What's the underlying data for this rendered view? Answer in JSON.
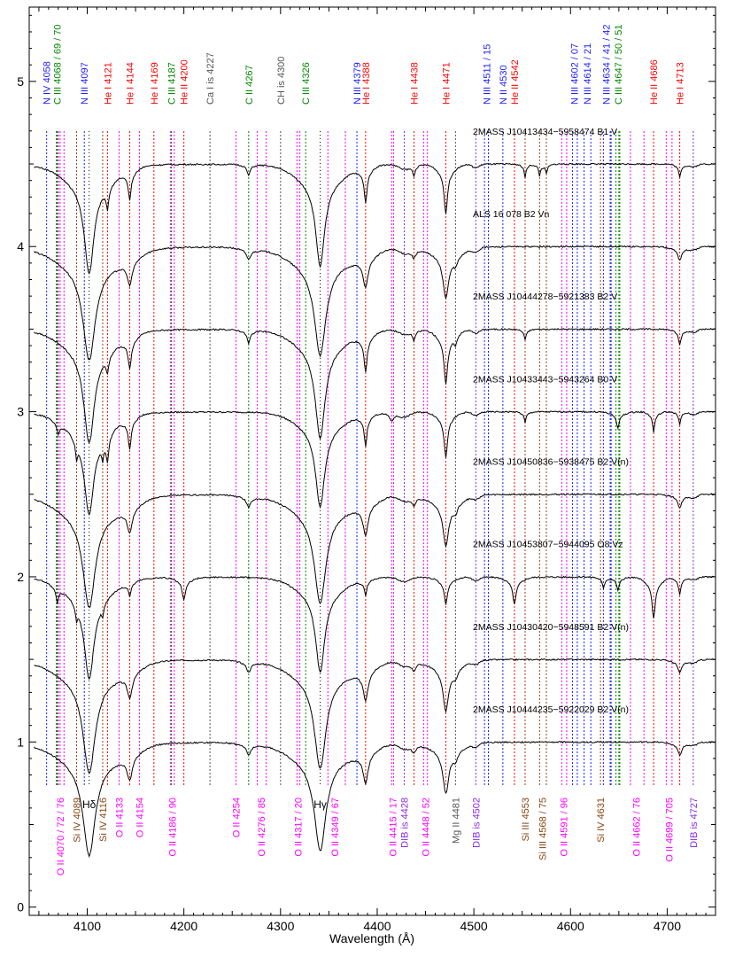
{
  "chart_data": {
    "type": "line",
    "title": "",
    "xlabel": "Wavelength (Å)",
    "ylabel": "",
    "xlim": [
      4040,
      4750
    ],
    "ylim": [
      -0.05,
      5.45
    ],
    "x_ticks": [
      4100,
      4200,
      4300,
      4400,
      4500,
      4600,
      4700
    ],
    "y_ticks": [
      0,
      1,
      2,
      3,
      4,
      5
    ],
    "grid": false,
    "colors": {
      "N": "#1d1dff",
      "C": "#008800",
      "He": "#ff0000",
      "other": "#555555",
      "O": "#ff00ff",
      "Si": "#8b4513",
      "DIB": "#8a2be2",
      "H": "#000000",
      "spectrum": "#000000"
    },
    "top_labels": [
      {
        "text": "N IV 4058",
        "x": 4058,
        "color": "N"
      },
      {
        "text": "C III 4068 / 69 / 70",
        "x": 4069,
        "color": "C"
      },
      {
        "text": "N III 4097",
        "x": 4097,
        "color": "N"
      },
      {
        "text": "He I 4121",
        "x": 4121,
        "color": "He"
      },
      {
        "text": "He I 4144",
        "x": 4144,
        "color": "He"
      },
      {
        "text": "He I 4169",
        "x": 4169,
        "color": "He"
      },
      {
        "text": "C III 4187",
        "x": 4187,
        "color": "C"
      },
      {
        "text": "He II 4200",
        "x": 4200,
        "color": "He"
      },
      {
        "text": "Ca I is 4227",
        "x": 4227,
        "color": "other"
      },
      {
        "text": "C II 4267",
        "x": 4267,
        "color": "C"
      },
      {
        "text": "CH is 4300",
        "x": 4300,
        "color": "other"
      },
      {
        "text": "C III 4326",
        "x": 4326,
        "color": "C"
      },
      {
        "text": "N III 4379",
        "x": 4379,
        "color": "N"
      },
      {
        "text": "He I 4388",
        "x": 4388,
        "color": "He"
      },
      {
        "text": "He I 4438",
        "x": 4438,
        "color": "He"
      },
      {
        "text": "He I 4471",
        "x": 4471,
        "color": "He"
      },
      {
        "text": "N III 4511 / 15",
        "x": 4513,
        "color": "N"
      },
      {
        "text": "N II 4530",
        "x": 4530,
        "color": "N"
      },
      {
        "text": "He II 4542",
        "x": 4542,
        "color": "He"
      },
      {
        "text": "N III 4602 / 07",
        "x": 4604,
        "color": "N"
      },
      {
        "text": "N III 4614 / 21",
        "x": 4617,
        "color": "N"
      },
      {
        "text": "N III 4634 / 41 / 42",
        "x": 4637,
        "color": "N"
      },
      {
        "text": "C III 4647 / 50 / 51",
        "x": 4649,
        "color": "C"
      },
      {
        "text": "He II 4686",
        "x": 4686,
        "color": "He"
      },
      {
        "text": "He I 4713",
        "x": 4713,
        "color": "He"
      }
    ],
    "bottom_labels": [
      {
        "text": "O II 4070 / 72 / 76",
        "x": 4072,
        "color": "O"
      },
      {
        "text": "Si IV 4089",
        "x": 4089,
        "color": "Si"
      },
      {
        "text": "Hδ",
        "x": 4102,
        "color": "H"
      },
      {
        "text": "Si IV 4116",
        "x": 4116,
        "color": "Si"
      },
      {
        "text": "O II 4133",
        "x": 4133,
        "color": "O"
      },
      {
        "text": "O II 4154",
        "x": 4154,
        "color": "O"
      },
      {
        "text": "O II 4186 / 90",
        "x": 4188,
        "color": "O"
      },
      {
        "text": "O II 4254",
        "x": 4254,
        "color": "O"
      },
      {
        "text": "O II 4276 / 85",
        "x": 4280,
        "color": "O"
      },
      {
        "text": "O II 4317 / 20",
        "x": 4318,
        "color": "O"
      },
      {
        "text": "Hγ",
        "x": 4341,
        "color": "H"
      },
      {
        "text": "O II 4349 / 67",
        "x": 4356,
        "color": "O"
      },
      {
        "text": "O II 4415 / 17",
        "x": 4416,
        "color": "O"
      },
      {
        "text": "DIB is 4428",
        "x": 4428,
        "color": "DIB"
      },
      {
        "text": "O II 4448 / 52",
        "x": 4450,
        "color": "O"
      },
      {
        "text": "Mg II 4481",
        "x": 4481,
        "color": "other"
      },
      {
        "text": "DIB is 4502",
        "x": 4502,
        "color": "DIB"
      },
      {
        "text": "Si III 4553",
        "x": 4553,
        "color": "Si"
      },
      {
        "text": "Si III 4568 / 75",
        "x": 4571,
        "color": "Si"
      },
      {
        "text": "O II 4591 / 96",
        "x": 4593,
        "color": "O"
      },
      {
        "text": "Si IV 4631",
        "x": 4631,
        "color": "Si"
      },
      {
        "text": "O II 4662 / 76",
        "x": 4668,
        "color": "O"
      },
      {
        "text": "O II 4699 / 705",
        "x": 4702,
        "color": "O"
      },
      {
        "text": "DIB is 4727",
        "x": 4727,
        "color": "DIB"
      }
    ],
    "series": [
      {
        "name": "2MASS J10413434−5958474 B1 V",
        "offset": 4.5,
        "type_class": "B1"
      },
      {
        "name": "ALS 16 078 B2 Vn",
        "offset": 4.0,
        "type_class": "B2n"
      },
      {
        "name": "2MASS J10444278−5921383 B2 V",
        "offset": 3.5,
        "type_class": "B2"
      },
      {
        "name": "2MASS J10433443−5943264 B0 V",
        "offset": 3.0,
        "type_class": "B0"
      },
      {
        "name": "2MASS J10450836−5938475 B2 V(n)",
        "offset": 2.5,
        "type_class": "B2n"
      },
      {
        "name": "2MASS J10453807−5944095 O8 Vz",
        "offset": 2.0,
        "type_class": "O8"
      },
      {
        "name": "2MASS J10430420−5948591 B2 V(n)",
        "offset": 1.5,
        "type_class": "B2n"
      },
      {
        "name": "2MASS J10444235−5922029 B2 V(n)",
        "offset": 1.0,
        "type_class": "B2n"
      }
    ]
  }
}
